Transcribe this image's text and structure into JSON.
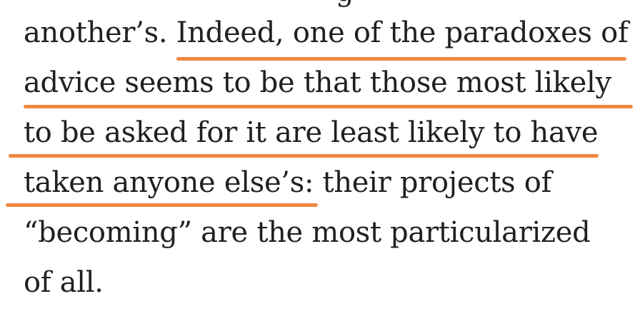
{
  "article": {
    "partial_top_line": "g",
    "lines": [
      "another’s. Indeed, one of the paradoxes of",
      "advice seems to be that those most likely",
      "to be asked for it are least likely to have",
      "taken anyone else’s: their projects of",
      "“becoming” are the most particularized",
      "of all."
    ]
  },
  "highlight": {
    "color": "#f0883e",
    "segments": 4
  }
}
